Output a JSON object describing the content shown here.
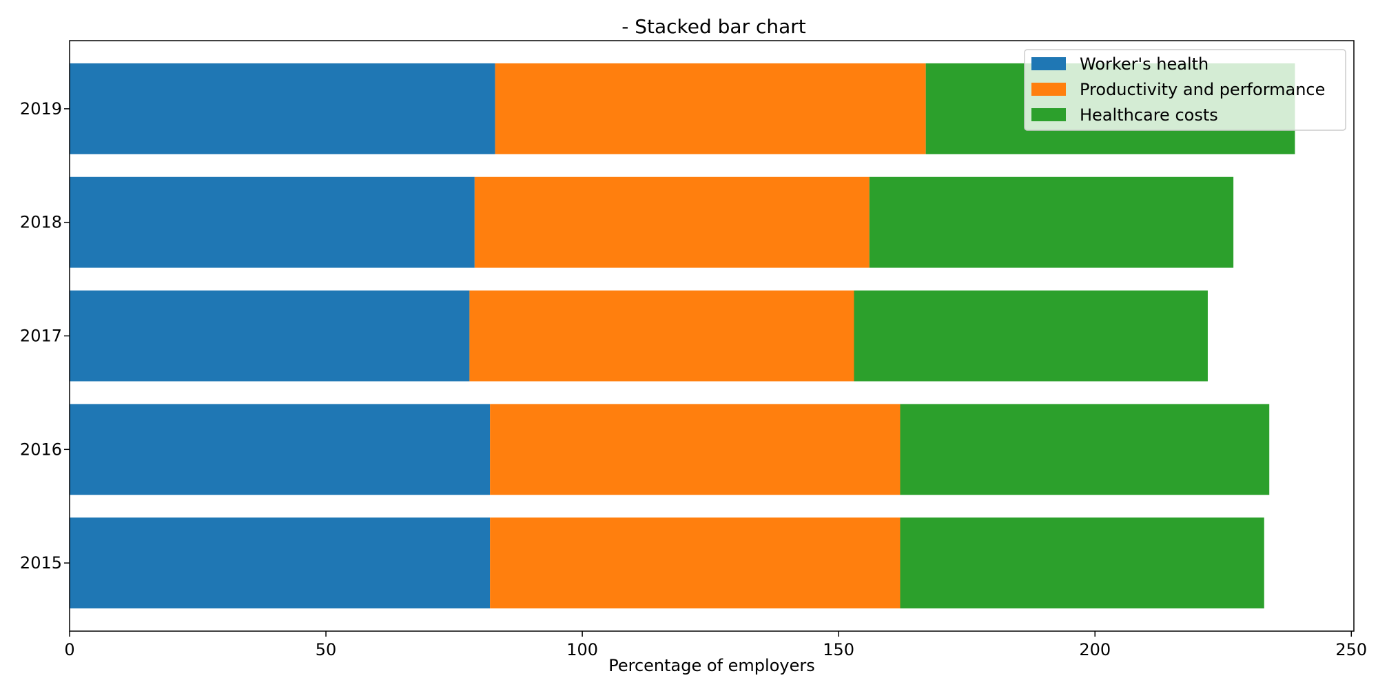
{
  "chart_data": {
    "type": "bar",
    "orientation": "horizontal",
    "stacked": true,
    "title": "- Stacked bar chart",
    "xlabel": "Percentage of employers",
    "ylabel": "",
    "categories": [
      "2015",
      "2016",
      "2017",
      "2018",
      "2019"
    ],
    "series": [
      {
        "name": "Worker's health",
        "values": [
          82,
          82,
          78,
          79,
          83
        ]
      },
      {
        "name": "Productivity and performance",
        "values": [
          80,
          80,
          75,
          77,
          84
        ]
      },
      {
        "name": "Healthcare costs",
        "values": [
          71,
          72,
          69,
          71,
          72
        ]
      }
    ],
    "xlim": [
      0,
      250.5
    ],
    "xticks": [
      0,
      50,
      100,
      150,
      200,
      250
    ],
    "colors": [
      "#1f77b4",
      "#ff7f0e",
      "#2ca02c"
    ],
    "legend_position": "top-right",
    "grid": false
  }
}
